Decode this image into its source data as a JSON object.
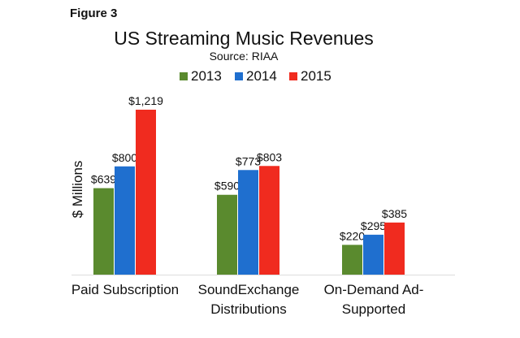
{
  "figure_label": "Figure 3",
  "chart_data": {
    "type": "bar",
    "title": "US Streaming Music Revenues",
    "subtitle": "Source: RIAA",
    "ylabel": "$ Millions",
    "xlabel": "",
    "categories": [
      [
        "Paid Subscription"
      ],
      [
        "SoundExchange",
        "Distributions"
      ],
      [
        "On-Demand Ad-",
        "Supported"
      ]
    ],
    "series": [
      {
        "name": "2013",
        "color": "#5a8a2e",
        "values": [
          639,
          590,
          220
        ],
        "labels": [
          "$639",
          "$590",
          "$220"
        ]
      },
      {
        "name": "2014",
        "color": "#1f6fcf",
        "values": [
          800,
          773,
          295
        ],
        "labels": [
          "$800",
          "$773",
          "$295"
        ]
      },
      {
        "name": "2015",
        "color": "#f02b1f",
        "values": [
          1219,
          803,
          385
        ],
        "labels": [
          "$1,219",
          "$803",
          "$385"
        ]
      }
    ],
    "ylim": [
      0,
      1219
    ],
    "grid": false,
    "legend_position": "top"
  }
}
